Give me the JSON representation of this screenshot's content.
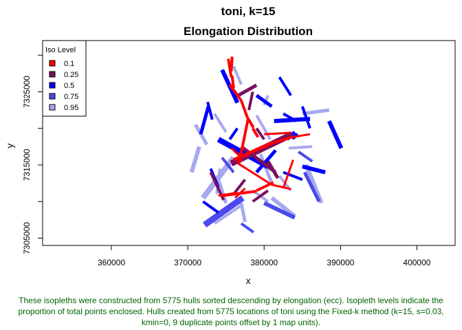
{
  "chart_data": {
    "type": "scatter",
    "title_line1": "toni, k=15",
    "title_line2": "Elongation Distribution",
    "xlabel": "x",
    "ylabel": "y",
    "xlim": [
      351000,
      405000
    ],
    "ylim": [
      7304000,
      7332000
    ],
    "x_ticks": [
      360000,
      370000,
      380000,
      390000,
      400000
    ],
    "y_ticks": [
      7305000,
      7315000,
      7325000
    ],
    "legend": {
      "title": "Iso Level",
      "placement": "top-left",
      "entries": [
        {
          "label": "0.1",
          "color": "#ff0000"
        },
        {
          "label": "0.25",
          "color": "#7a1060"
        },
        {
          "label": "0.5",
          "color": "#0000ff"
        },
        {
          "label": "0.75",
          "color": "#4a4aee"
        },
        {
          "label": "0.95",
          "color": "#a8a8f0"
        }
      ]
    },
    "series": [
      {
        "level": "0.95",
        "color": "#a8a8f0",
        "segments": [
          [
            [
              372000,
              7310500
            ],
            [
              376000,
              7316000
            ],
            8
          ],
          [
            [
              371500,
              7317500
            ],
            [
              370500,
              7314000
            ],
            6
          ],
          [
            [
              381000,
              7310500
            ],
            [
              384000,
              7308000
            ],
            6
          ],
          [
            [
              377000,
              7309800
            ],
            [
              377500,
              7307200
            ],
            5
          ],
          [
            [
              379500,
              7316500
            ],
            [
              381000,
              7312500
            ],
            5
          ],
          [
            [
              374000,
              7313000
            ],
            [
              375000,
              7309800
            ],
            5
          ],
          [
            [
              385500,
              7315000
            ],
            [
              387500,
              7309800
            ],
            6
          ],
          [
            [
              385000,
              7322000
            ],
            [
              388500,
              7322500
            ],
            5
          ],
          [
            [
              371000,
              7320500
            ],
            [
              372500,
              7317800
            ],
            5
          ],
          [
            [
              376000,
              7328500
            ],
            [
              377000,
              7326000
            ],
            4
          ],
          [
            [
              373500,
              7322000
            ],
            [
              375000,
              7319500
            ],
            4
          ],
          [
            [
              373500,
              7307000
            ],
            [
              377200,
              7309600
            ],
            4
          ],
          [
            [
              382000,
              7313500
            ],
            [
              383500,
              7311500
            ],
            4
          ],
          [
            [
              378500,
              7311500
            ],
            [
              380500,
              7310000
            ],
            4
          ],
          [
            [
              383200,
              7317300
            ],
            [
              386300,
              7317500
            ],
            4
          ],
          [
            [
              374200,
              7314500
            ],
            [
              373800,
              7311000
            ],
            4
          ],
          [
            [
              379000,
              7321800
            ],
            [
              380800,
              7318500
            ],
            4
          ],
          [
            [
              380000,
              7323200
            ],
            [
              380500,
              7324500
            ],
            4
          ]
        ]
      },
      {
        "level": "0.75",
        "color": "#4a4aee",
        "segments": [
          [
            [
              372200,
              7306800
            ],
            [
              377200,
              7310500
            ],
            9
          ],
          [
            [
              380000,
              7309800
            ],
            [
              384000,
              7307800
            ],
            6
          ],
          [
            [
              385300,
              7314000
            ],
            [
              387200,
              7310000
            ],
            5
          ],
          [
            [
              386300,
              7315500
            ],
            [
              384500,
              7316800
            ],
            4
          ],
          [
            [
              377000,
              7307000
            ],
            [
              378600,
              7305800
            ],
            4
          ],
          [
            [
              374500,
              7316000
            ],
            [
              376000,
              7314000
            ],
            4
          ]
        ]
      },
      {
        "level": "0.5",
        "color": "#0000ff",
        "segments": [
          [
            [
              374000,
              7318500
            ],
            [
              380500,
              7314800
            ],
            8
          ],
          [
            [
              374500,
              7328000
            ],
            [
              376500,
              7323500
            ],
            6
          ],
          [
            [
              379000,
              7324500
            ],
            [
              381000,
              7323000
            ],
            5
          ],
          [
            [
              382000,
              7327000
            ],
            [
              383500,
              7324500
            ],
            4
          ],
          [
            [
              383000,
              7318500
            ],
            [
              384000,
              7319500
            ],
            5
          ],
          [
            [
              381300,
              7321000
            ],
            [
              386000,
              7321300
            ],
            6
          ],
          [
            [
              386000,
              7320000
            ],
            [
              385000,
              7323000
            ],
            4
          ],
          [
            [
              383700,
              7318600
            ],
            [
              384400,
              7319200
            ],
            5
          ],
          [
            [
              388500,
              7321000
            ],
            [
              390100,
              7317300
            ],
            6
          ],
          [
            [
              385000,
              7314800
            ],
            [
              388000,
              7314000
            ],
            6
          ],
          [
            [
              372000,
              7310000
            ],
            [
              374000,
              7308500
            ],
            4
          ],
          [
            [
              372700,
              7323000
            ],
            [
              371700,
              7319200
            ],
            5
          ],
          [
            [
              376500,
              7320000
            ],
            [
              375500,
              7318500
            ],
            4
          ],
          [
            [
              373000,
              7314500
            ],
            [
              374000,
              7312000
            ],
            4
          ],
          [
            [
              372600,
              7323600
            ],
            [
              373200,
              7321200
            ],
            4
          ],
          [
            [
              382500,
              7314000
            ],
            [
              385000,
              7313000
            ],
            4
          ],
          [
            [
              379000,
              7314000
            ],
            [
              381500,
              7317000
            ],
            5
          ],
          [
            [
              382500,
              7322000
            ],
            [
              384200,
              7321000
            ],
            4
          ]
        ]
      },
      {
        "level": "0.25",
        "color": "#7a1060",
        "segments": [
          [
            [
              375700,
              7315200
            ],
            [
              383700,
              7319200
            ],
            9
          ],
          [
            [
              377000,
              7317500
            ],
            [
              381500,
              7314000
            ],
            5
          ],
          [
            [
              380500,
              7315500
            ],
            [
              381800,
              7313200
            ],
            5
          ],
          [
            [
              376600,
              7324500
            ],
            [
              379000,
              7325900
            ],
            5
          ],
          [
            [
              378000,
              7322500
            ],
            [
              378500,
              7325000
            ],
            4
          ],
          [
            [
              373000,
              7314000
            ],
            [
              374700,
              7310200
            ],
            4
          ],
          [
            [
              377500,
              7313000
            ],
            [
              376000,
              7311000
            ],
            4
          ],
          [
            [
              378500,
              7310000
            ],
            [
              380500,
              7311500
            ],
            4
          ],
          [
            [
              379000,
              7320000
            ],
            [
              380000,
              7318500
            ],
            4
          ]
        ]
      },
      {
        "level": "0.1",
        "color": "#ff0000",
        "segments": [
          [
            [
              375300,
              7329500
            ],
            [
              375700,
              7327000
            ],
            4
          ],
          [
            [
              375800,
              7327200
            ],
            [
              376000,
              7325500
            ],
            4
          ],
          [
            [
              375800,
              7329800
            ],
            [
              375700,
              7327800
            ],
            4
          ],
          [
            [
              375500,
              7326000
            ],
            [
              377000,
              7323800
            ],
            4
          ],
          [
            [
              377000,
              7323800
            ],
            [
              377800,
              7321500
            ],
            4
          ],
          [
            [
              377800,
              7321500
            ],
            [
              378600,
              7320100
            ],
            4
          ],
          [
            [
              377900,
              7321300
            ],
            [
              376700,
              7315200
            ],
            4
          ],
          [
            [
              378500,
              7320000
            ],
            [
              379200,
              7318800
            ],
            4
          ],
          [
            [
              376000,
              7315700
            ],
            [
              381000,
              7318000
            ],
            5
          ],
          [
            [
              381000,
              7318000
            ],
            [
              383700,
              7318800
            ],
            4
          ],
          [
            [
              383700,
              7318800
            ],
            [
              386000,
              7319200
            ],
            3
          ],
          [
            [
              380000,
              7319200
            ],
            [
              383500,
              7319400
            ],
            3
          ],
          [
            [
              376600,
              7315200
            ],
            [
              381000,
              7312300
            ],
            3
          ],
          [
            [
              381000,
              7312300
            ],
            [
              383500,
              7311700
            ],
            3
          ],
          [
            [
              374500,
              7310800
            ],
            [
              379000,
              7311400
            ],
            4
          ],
          [
            [
              379000,
              7311500
            ],
            [
              381200,
              7312600
            ],
            4
          ],
          [
            [
              382500,
              7311800
            ],
            [
              383800,
              7315700
            ],
            3
          ],
          [
            [
              375700,
              7317300
            ],
            [
              376700,
              7316300
            ],
            3
          ],
          [
            [
              376700,
              7316300
            ],
            [
              377400,
              7317500
            ],
            3
          ],
          [
            [
              376200,
              7310500
            ],
            [
              377500,
              7311800
            ],
            3
          ],
          [
            [
              374000,
              7310800
            ],
            [
              376500,
              7311200
            ],
            3
          ]
        ]
      }
    ]
  },
  "caption": "These isopleths were constructed from 5775 hulls sorted descending by elongation (ecc). Isopleth levels indicate the proportion of total points enclosed. Hulls created from 5775 locations of toni using the Fixed-k method (k=15, s=0.03, kmin=0, 9 duplicate points offset by 1 map units)."
}
